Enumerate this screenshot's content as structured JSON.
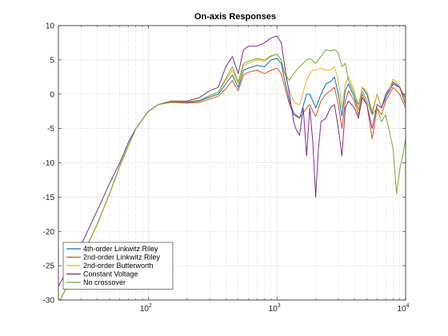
{
  "chart_data": {
    "type": "line",
    "title": "On-axis Responses",
    "xlabel": "",
    "ylabel": "",
    "x_scale": "log",
    "xlim": [
      20,
      10000
    ],
    "ylim": [
      -30,
      10
    ],
    "x_major_ticks": [
      100,
      1000,
      10000
    ],
    "x_tick_labels": [
      {
        "base": "10",
        "exp": "2"
      },
      {
        "base": "10",
        "exp": "3"
      },
      {
        "base": "10",
        "exp": "4"
      }
    ],
    "y_ticks": [
      -30,
      -25,
      -20,
      -15,
      -10,
      -5,
      0,
      5,
      10
    ],
    "y_tick_labels": [
      "-30",
      "-25",
      "-20",
      "-15",
      "-10",
      "-5",
      "0",
      "5",
      "10"
    ],
    "grid": true,
    "legend_position": "bottom-left",
    "series": [
      {
        "name": "4th-order Linkwitz Riley",
        "color": "#0072BD",
        "points": [
          [
            20,
            -30.5
          ],
          [
            30,
            -24
          ],
          [
            40,
            -19
          ],
          [
            50,
            -14.5
          ],
          [
            60,
            -10.5
          ],
          [
            70,
            -7.5
          ],
          [
            80,
            -5
          ],
          [
            100,
            -2.5
          ],
          [
            120,
            -1.5
          ],
          [
            150,
            -1.1
          ],
          [
            200,
            -1.2
          ],
          [
            250,
            -1.0
          ],
          [
            300,
            -0.4
          ],
          [
            350,
            0
          ],
          [
            400,
            1.5
          ],
          [
            450,
            2.8
          ],
          [
            500,
            1.0
          ],
          [
            550,
            3.5
          ],
          [
            600,
            3.8
          ],
          [
            700,
            4.2
          ],
          [
            800,
            4.0
          ],
          [
            900,
            5.0
          ],
          [
            1000,
            5.2
          ],
          [
            1080,
            4.5
          ],
          [
            1150,
            2
          ],
          [
            1250,
            -1
          ],
          [
            1350,
            -2.8
          ],
          [
            1450,
            -3.2
          ],
          [
            1500,
            -3.5
          ],
          [
            1700,
            0
          ],
          [
            1800,
            0
          ],
          [
            1900,
            -1
          ],
          [
            2000,
            -2
          ],
          [
            2100,
            -1
          ],
          [
            2200,
            0
          ],
          [
            2400,
            1.5
          ],
          [
            2600,
            1.8
          ],
          [
            2800,
            2.5
          ],
          [
            3000,
            0
          ],
          [
            3200,
            -3.2
          ],
          [
            3400,
            0.5
          ],
          [
            3600,
            1.5
          ],
          [
            4000,
            -0.5
          ],
          [
            4300,
            -2.3
          ],
          [
            4600,
            1
          ],
          [
            5000,
            0
          ],
          [
            5500,
            -2.8
          ],
          [
            6000,
            0
          ],
          [
            6500,
            -2
          ],
          [
            7000,
            0
          ],
          [
            8000,
            1.8
          ],
          [
            9000,
            1
          ],
          [
            10000,
            -0.5
          ]
        ]
      },
      {
        "name": "2nd-order Linkwitz Riley",
        "color": "#D95319",
        "points": [
          [
            20,
            -30.5
          ],
          [
            30,
            -24
          ],
          [
            40,
            -19
          ],
          [
            50,
            -14.5
          ],
          [
            60,
            -10.5
          ],
          [
            70,
            -7.5
          ],
          [
            80,
            -5
          ],
          [
            100,
            -2.5
          ],
          [
            120,
            -1.5
          ],
          [
            150,
            -1.2
          ],
          [
            200,
            -1.3
          ],
          [
            250,
            -1.2
          ],
          [
            300,
            -0.7
          ],
          [
            350,
            -0.3
          ],
          [
            400,
            0.8
          ],
          [
            450,
            2.0
          ],
          [
            500,
            0.5
          ],
          [
            550,
            2.8
          ],
          [
            600,
            3.2
          ],
          [
            700,
            3.5
          ],
          [
            800,
            3.0
          ],
          [
            900,
            3.5
          ],
          [
            1000,
            3.8
          ],
          [
            1080,
            3
          ],
          [
            1150,
            1
          ],
          [
            1250,
            -1.5
          ],
          [
            1350,
            -3
          ],
          [
            1500,
            -3.5
          ],
          [
            1700,
            -2
          ],
          [
            1800,
            -1.5
          ],
          [
            1900,
            -2.5
          ],
          [
            2000,
            -3.2
          ],
          [
            2200,
            -1
          ],
          [
            2400,
            0
          ],
          [
            2600,
            0.5
          ],
          [
            2800,
            1
          ],
          [
            3000,
            -1.5
          ],
          [
            3200,
            -5
          ],
          [
            3400,
            -1
          ],
          [
            3600,
            0.5
          ],
          [
            4000,
            -1
          ],
          [
            4300,
            -3
          ],
          [
            4600,
            0
          ],
          [
            5000,
            -1.5
          ],
          [
            5500,
            -6.5
          ],
          [
            6000,
            -2
          ],
          [
            6500,
            -3
          ],
          [
            7000,
            -1
          ],
          [
            8000,
            1
          ],
          [
            9000,
            0
          ],
          [
            10000,
            -2
          ]
        ]
      },
      {
        "name": "2nd-order Butterworth",
        "color": "#EDB120",
        "points": [
          [
            20,
            -30.5
          ],
          [
            30,
            -24
          ],
          [
            40,
            -19
          ],
          [
            50,
            -14.5
          ],
          [
            60,
            -10.5
          ],
          [
            70,
            -7.5
          ],
          [
            80,
            -5
          ],
          [
            100,
            -2.5
          ],
          [
            120,
            -1.5
          ],
          [
            150,
            -1.1
          ],
          [
            200,
            -1.1
          ],
          [
            250,
            -0.9
          ],
          [
            300,
            -0.2
          ],
          [
            350,
            0.3
          ],
          [
            400,
            2
          ],
          [
            450,
            3.5
          ],
          [
            500,
            1.5
          ],
          [
            550,
            4.2
          ],
          [
            600,
            4.5
          ],
          [
            700,
            5
          ],
          [
            800,
            4.8
          ],
          [
            900,
            5.5
          ],
          [
            1000,
            5.8
          ],
          [
            1080,
            5
          ],
          [
            1150,
            3
          ],
          [
            1250,
            0.5
          ],
          [
            1350,
            -1
          ],
          [
            1450,
            -1.5
          ],
          [
            1500,
            -1.5
          ],
          [
            1700,
            2
          ],
          [
            1800,
            3
          ],
          [
            1900,
            3.5
          ],
          [
            2000,
            3.5
          ],
          [
            2200,
            3.8
          ],
          [
            2400,
            3.5
          ],
          [
            2600,
            3.5
          ],
          [
            2800,
            4
          ],
          [
            3000,
            2
          ],
          [
            3200,
            -2
          ],
          [
            3400,
            1.5
          ],
          [
            3600,
            2.5
          ],
          [
            4000,
            0.5
          ],
          [
            4300,
            -2.3
          ],
          [
            4600,
            1
          ],
          [
            5000,
            0.5
          ],
          [
            5500,
            -2.5
          ],
          [
            6000,
            0
          ],
          [
            6500,
            -2
          ],
          [
            7000,
            -0.5
          ],
          [
            8000,
            2.2
          ],
          [
            9000,
            1.2
          ],
          [
            10000,
            -1
          ]
        ]
      },
      {
        "name": "Constant Voltage",
        "color": "#7E2F8E",
        "points": [
          [
            20,
            -28
          ],
          [
            30,
            -22
          ],
          [
            40,
            -17
          ],
          [
            50,
            -13
          ],
          [
            60,
            -10
          ],
          [
            70,
            -7
          ],
          [
            80,
            -5
          ],
          [
            100,
            -2.5
          ],
          [
            120,
            -1.5
          ],
          [
            150,
            -1
          ],
          [
            200,
            -1
          ],
          [
            250,
            -0.5
          ],
          [
            300,
            0.5
          ],
          [
            350,
            1
          ],
          [
            400,
            4
          ],
          [
            450,
            5.5
          ],
          [
            500,
            3
          ],
          [
            550,
            6.5
          ],
          [
            600,
            7
          ],
          [
            700,
            7
          ],
          [
            800,
            7.5
          ],
          [
            900,
            8.2
          ],
          [
            1000,
            8.5
          ],
          [
            1080,
            7.5
          ],
          [
            1150,
            4
          ],
          [
            1250,
            0
          ],
          [
            1350,
            -4
          ],
          [
            1400,
            -5
          ],
          [
            1500,
            -6
          ],
          [
            1600,
            -2
          ],
          [
            1700,
            -9
          ],
          [
            1800,
            -2
          ],
          [
            1900,
            -7
          ],
          [
            2000,
            -15
          ],
          [
            2100,
            -8
          ],
          [
            2200,
            -4
          ],
          [
            2400,
            -3.5
          ],
          [
            2600,
            -2
          ],
          [
            2800,
            -1.5
          ],
          [
            3000,
            -5
          ],
          [
            3200,
            -9
          ],
          [
            3400,
            -2
          ],
          [
            3600,
            -1
          ],
          [
            4000,
            -2
          ],
          [
            4300,
            -3.5
          ],
          [
            4600,
            -0.5
          ],
          [
            5000,
            -1.5
          ],
          [
            5500,
            -5
          ],
          [
            6000,
            -1.5
          ],
          [
            6500,
            -2
          ],
          [
            7000,
            -0.5
          ],
          [
            8000,
            1.5
          ],
          [
            9000,
            1
          ],
          [
            10000,
            -1.5
          ]
        ]
      },
      {
        "name": "No crossover",
        "color": "#77AC30",
        "points": [
          [
            20,
            -30.5
          ],
          [
            30,
            -24
          ],
          [
            40,
            -19
          ],
          [
            50,
            -14.5
          ],
          [
            60,
            -10.5
          ],
          [
            70,
            -7.5
          ],
          [
            80,
            -5
          ],
          [
            100,
            -2.5
          ],
          [
            120,
            -1.5
          ],
          [
            150,
            -1.1
          ],
          [
            200,
            -1.1
          ],
          [
            250,
            -0.9
          ],
          [
            300,
            -0.2
          ],
          [
            350,
            0.3
          ],
          [
            400,
            2.3
          ],
          [
            450,
            4
          ],
          [
            500,
            1.8
          ],
          [
            550,
            4.5
          ],
          [
            600,
            4.8
          ],
          [
            700,
            5.2
          ],
          [
            800,
            5
          ],
          [
            900,
            5.6
          ],
          [
            1000,
            5.8
          ],
          [
            1080,
            5
          ],
          [
            1150,
            3
          ],
          [
            1250,
            2
          ],
          [
            1350,
            3
          ],
          [
            1500,
            4
          ],
          [
            1700,
            5
          ],
          [
            1800,
            5.2
          ],
          [
            2000,
            4.5
          ],
          [
            2200,
            5.5
          ],
          [
            2400,
            6.5
          ],
          [
            2600,
            6.3
          ],
          [
            2800,
            6.5
          ],
          [
            3000,
            6
          ],
          [
            3200,
            4
          ],
          [
            3400,
            4.5
          ],
          [
            3600,
            2
          ],
          [
            4000,
            0
          ],
          [
            4300,
            -1.5
          ],
          [
            4600,
            0.5
          ],
          [
            5000,
            -1
          ],
          [
            5500,
            -3
          ],
          [
            6000,
            -2
          ],
          [
            6500,
            -4
          ],
          [
            7000,
            -3
          ],
          [
            7500,
            -5.5
          ],
          [
            8000,
            -8
          ],
          [
            8500,
            -14.5
          ],
          [
            9000,
            -11
          ],
          [
            9500,
            -9
          ],
          [
            10000,
            -6.5
          ]
        ]
      }
    ]
  }
}
